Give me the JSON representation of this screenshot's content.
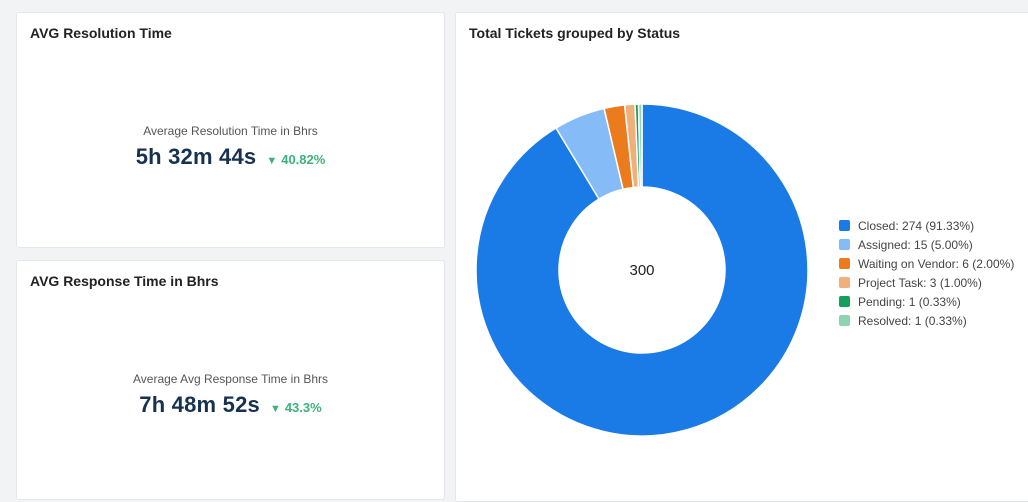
{
  "cards": {
    "resolution": {
      "title": "AVG Resolution Time",
      "label": "Average Resolution Time in Bhrs",
      "value": "5h 32m 44s",
      "trend": "40.82%",
      "trend_direction": "down"
    },
    "response": {
      "title": "AVG Response Time in Bhrs",
      "label": "Average Avg Response Time in Bhrs",
      "value": "7h 48m 52s",
      "trend": "43.3%",
      "trend_direction": "down"
    },
    "tickets": {
      "title": "Total Tickets grouped by Status"
    }
  },
  "colors": {
    "trend_down": "#3cb37a",
    "value_text": "#16324f"
  },
  "chart_data": {
    "type": "pie",
    "title": "Total Tickets grouped by Status",
    "center_label": "300",
    "total": 300,
    "categories": [
      "Closed",
      "Assigned",
      "Waiting on Vendor",
      "Project Task",
      "Pending",
      "Resolved"
    ],
    "values": [
      274,
      15,
      6,
      3,
      1,
      1
    ],
    "percentages": [
      "91.33%",
      "5.00%",
      "2.00%",
      "1.00%",
      "0.33%",
      "0.33%"
    ],
    "legend_labels": [
      "Closed: 274 (91.33%)",
      "Assigned: 15 (5.00%)",
      "Waiting on Vendor: 6 (2.00%)",
      "Project Task: 3 (1.00%)",
      "Pending: 1 (0.33%)",
      "Resolved: 1 (0.33%)"
    ],
    "colors": [
      "#1a7ae6",
      "#85bcf8",
      "#ec7b1e",
      "#f0b07a",
      "#14a05a",
      "#8fd4b0"
    ],
    "legend_position": "right"
  }
}
